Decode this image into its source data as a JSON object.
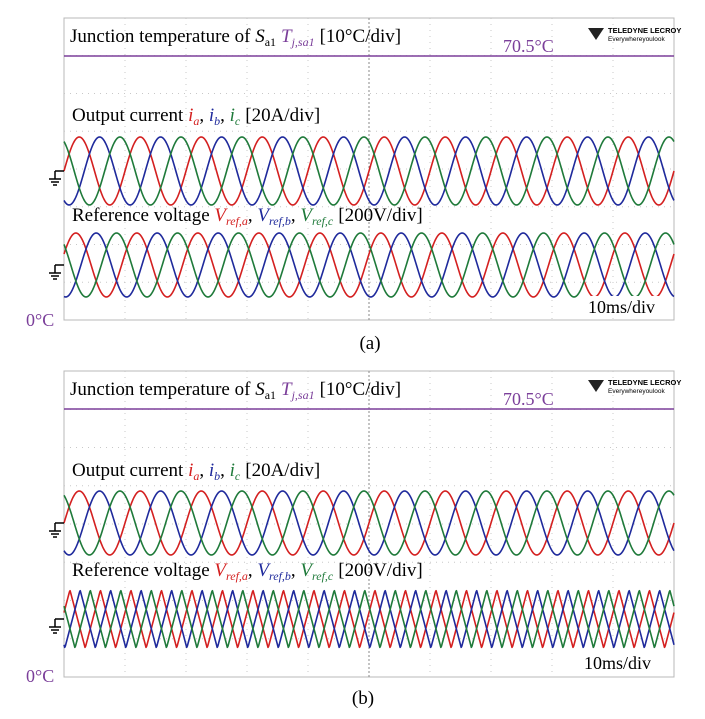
{
  "colors": {
    "phase_a": "#d42020",
    "phase_b": "#1f2a9c",
    "phase_c": "#1f7a3a",
    "temperature": "#7b3f9a",
    "text": "#000000"
  },
  "panels": [
    {
      "caption": "(a)",
      "temp_title_prefix": "Junction temperature of ",
      "temp_title_device": "S",
      "temp_title_device_sub": "a1",
      "temp_title_var": "T",
      "temp_title_var_sub": "j,sa1",
      "temp_title_scale": "[10°C/div]",
      "temp_max_label": "70.5°C",
      "temp_zero_label": "0°C",
      "current_title_prefix": "Output current ",
      "current_vars": [
        "i",
        "i",
        "i"
      ],
      "current_subs": [
        "a",
        "b",
        "c"
      ],
      "current_scale": "[20A/div]",
      "voltage_title_prefix": "Reference voltage ",
      "voltage_vars": [
        "V",
        "V",
        "V"
      ],
      "voltage_subs": [
        "ref,a",
        "ref,b",
        "ref,c"
      ],
      "voltage_scale": "[200V/div]",
      "timebase": "10ms/div",
      "brand_name": "TELEDYNE LECROY",
      "brand_tagline": "Everywhereyoulook"
    },
    {
      "caption": "(b)",
      "temp_title_prefix": "Junction temperature of ",
      "temp_title_device": "S",
      "temp_title_device_sub": "a1",
      "temp_title_var": "T",
      "temp_title_var_sub": "j,sa1",
      "temp_title_scale": "[10°C/div]",
      "temp_max_label": "70.5°C",
      "temp_zero_label": "0°C",
      "current_title_prefix": "Output current ",
      "current_vars": [
        "i",
        "i",
        "i"
      ],
      "current_subs": [
        "a",
        "b",
        "c"
      ],
      "current_scale": "[20A/div]",
      "voltage_title_prefix": "Reference voltage ",
      "voltage_vars": [
        "V",
        "V",
        "V"
      ],
      "voltage_subs": [
        "ref,a",
        "ref,b",
        "ref,c"
      ],
      "voltage_scale": "[200V/div]",
      "timebase": "10ms/div",
      "brand_name": "TELEDYNE LECROY",
      "brand_tagline": "Everywhereyoulook"
    }
  ],
  "chart_data": [
    {
      "type": "line",
      "title": "(a)",
      "time_per_div_ms": 10,
      "divisions": 10,
      "series": [
        {
          "name": "T_j,sa1",
          "unit": "°C",
          "value_const": 70.5,
          "shape": "flat"
        },
        {
          "name": "i_a",
          "unit": "A",
          "shape": "sine",
          "cycles": 10,
          "phase_deg": 0
        },
        {
          "name": "i_b",
          "unit": "A",
          "shape": "sine",
          "cycles": 10,
          "phase_deg": -120
        },
        {
          "name": "i_c",
          "unit": "A",
          "shape": "sine",
          "cycles": 10,
          "phase_deg": 120
        },
        {
          "name": "V_ref,a",
          "unit": "V",
          "shape": "sine",
          "cycles": 10,
          "phase_deg": 0
        },
        {
          "name": "V_ref,b",
          "unit": "V",
          "shape": "sine",
          "cycles": 10,
          "phase_deg": -120
        },
        {
          "name": "V_ref,c",
          "unit": "V",
          "shape": "sine",
          "cycles": 10,
          "phase_deg": 120
        }
      ]
    },
    {
      "type": "line",
      "title": "(b)",
      "time_per_div_ms": 10,
      "divisions": 10,
      "series": [
        {
          "name": "T_j,sa1",
          "unit": "°C",
          "value_const": 70.5,
          "shape": "flat"
        },
        {
          "name": "i_a",
          "unit": "A",
          "shape": "sine",
          "cycles": 10,
          "phase_deg": 0
        },
        {
          "name": "i_b",
          "unit": "A",
          "shape": "sine",
          "cycles": 10,
          "phase_deg": -120
        },
        {
          "name": "i_c",
          "unit": "A",
          "shape": "sine",
          "cycles": 10,
          "phase_deg": 120
        },
        {
          "name": "V_ref,a",
          "unit": "V",
          "shape": "triangle",
          "cycles": 20,
          "phase_deg": 0
        },
        {
          "name": "V_ref,b",
          "unit": "V",
          "shape": "triangle",
          "cycles": 20,
          "phase_deg": -120
        },
        {
          "name": "V_ref,c",
          "unit": "V",
          "shape": "triangle",
          "cycles": 20,
          "phase_deg": 120
        }
      ]
    }
  ]
}
